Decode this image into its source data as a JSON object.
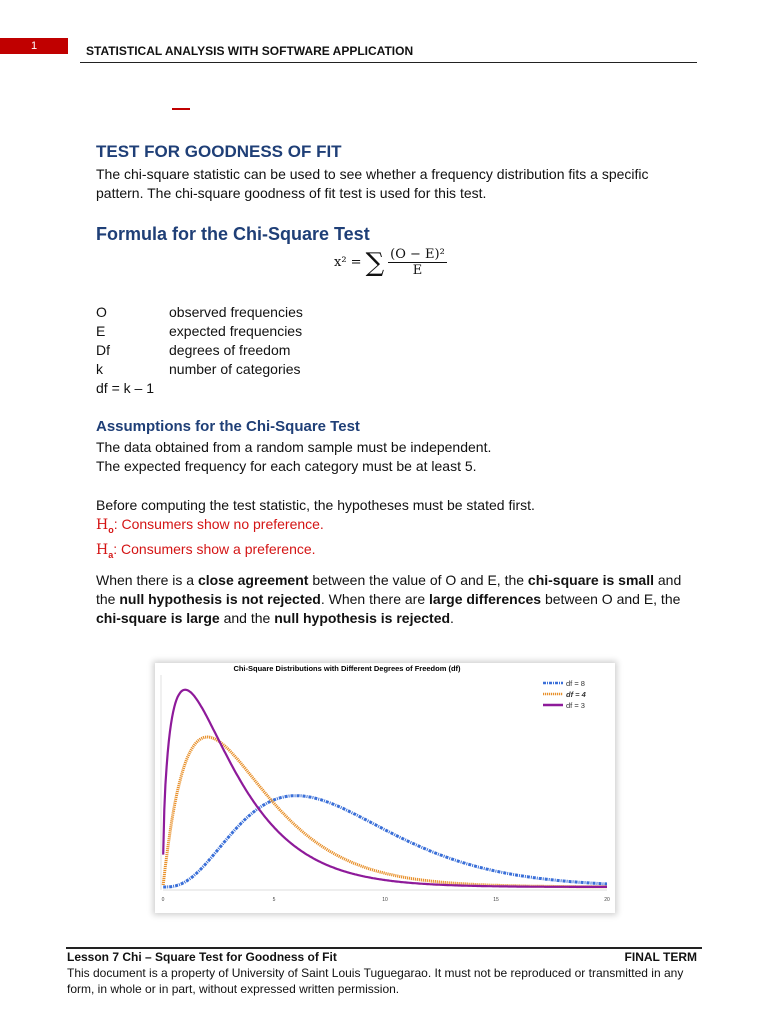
{
  "header": {
    "page_number": "1",
    "course_title": "STATISTICAL ANALYSIS WITH SOFTWARE APPLICATION"
  },
  "section": {
    "title": "TEST FOR GOODNESS OF FIT",
    "intro": "The chi-square statistic can be used to see whether a frequency distribution fits a specific pattern. The chi-square goodness of fit test is used for this test."
  },
  "formula": {
    "heading": "Formula for the Chi-Square Test",
    "lhs": "x² =",
    "sigma": "∑",
    "numerator": "(O − E)²",
    "denominator": "E"
  },
  "definitions": [
    {
      "symbol": "O",
      "meaning": "observed frequencies"
    },
    {
      "symbol": "E",
      "meaning": "expected frequencies"
    },
    {
      "symbol": "Df",
      "meaning": "degrees of freedom"
    },
    {
      "symbol": "k",
      "meaning": "number of categories"
    }
  ],
  "df_formula": "df = k – 1",
  "assumptions": {
    "heading": "Assumptions for the Chi-Square Test",
    "items": [
      "The data obtained from a random sample must be independent.",
      "The expected frequency for each category must be at least 5."
    ]
  },
  "hypotheses": {
    "intro": "Before computing the test statistic, the hypotheses must be stated first.",
    "h0_symbol": "H",
    "h0_sub": "o",
    "h0_text": ": Consumers show no preference.",
    "ha_symbol": "H",
    "ha_sub": "a",
    "ha_text": ": Consumers show a preference.",
    "color": "#d41414"
  },
  "conclusion": [
    {
      "text": "When there is a ",
      "bold": false
    },
    {
      "text": "close agreement",
      "bold": true
    },
    {
      "text": " between the value of O and E, the ",
      "bold": false
    },
    {
      "text": "chi-square is small",
      "bold": true
    },
    {
      "text": " and the ",
      "bold": false
    },
    {
      "text": "null hypothesis is not rejected",
      "bold": true
    },
    {
      "text": ". When there are ",
      "bold": false
    },
    {
      "text": "large differences",
      "bold": true
    },
    {
      "text": " between O and E, the ",
      "bold": false
    },
    {
      "text": "chi-square is large",
      "bold": true
    },
    {
      "text": " and the ",
      "bold": false
    },
    {
      "text": "null hypothesis is rejected",
      "bold": true
    },
    {
      "text": ".",
      "bold": false
    }
  ],
  "chart_data": {
    "type": "line",
    "title": "Chi-Square Distributions with Different Degrees of Freedom (df)",
    "xlim": [
      0,
      20
    ],
    "ylim": [
      0,
      0.26
    ],
    "x_ticks": [
      "0",
      "5",
      "10",
      "15",
      "20"
    ],
    "legend_position": "top-right",
    "grid": false,
    "series": [
      {
        "name": "df = 8",
        "df": 8,
        "color": "#3a6fd8",
        "style": "dash-dot"
      },
      {
        "name": "df = 4",
        "df": 4,
        "color": "#e8902a",
        "style": "dotted"
      },
      {
        "name": "df = 3",
        "df": 3,
        "color": "#8e1a9a",
        "style": "solid"
      }
    ]
  },
  "footer": {
    "lesson": "Lesson 7 Chi – Square Test for Goodness of Fit",
    "term": "FINAL TERM",
    "notice": "This document is a property of University of Saint Louis Tuguegarao. It must not be reproduced or transmitted in any form, in whole or in part, without expressed written permission."
  }
}
